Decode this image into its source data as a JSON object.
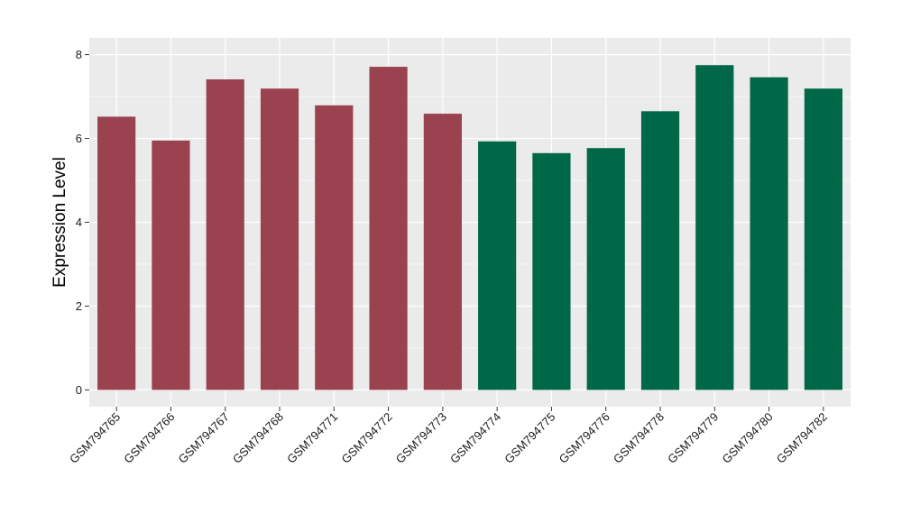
{
  "chart_data": {
    "type": "bar",
    "title": "",
    "xlabel": "",
    "ylabel": "Expression Level",
    "ylim": [
      0,
      8.4
    ],
    "y_ticks": [
      0,
      2,
      4,
      6,
      8
    ],
    "grid": true,
    "legend": "none",
    "background": "#EBEBEB",
    "gridline_color": "#FFFFFF",
    "categories": [
      "GSM794765",
      "GSM794766",
      "GSM794767",
      "GSM794768",
      "GSM794771",
      "GSM794772",
      "GSM794773",
      "GSM794774",
      "GSM794775",
      "GSM794776",
      "GSM794778",
      "GSM794779",
      "GSM794780",
      "GSM794782"
    ],
    "values": [
      6.52,
      5.95,
      7.41,
      7.19,
      6.79,
      7.71,
      6.59,
      5.93,
      5.65,
      5.77,
      6.65,
      7.75,
      7.46,
      7.19
    ],
    "bar_colors": [
      "#9A4250",
      "#9A4250",
      "#9A4250",
      "#9A4250",
      "#9A4250",
      "#9A4250",
      "#9A4250",
      "#006747",
      "#006747",
      "#006747",
      "#006747",
      "#006747",
      "#006747",
      "#006747"
    ]
  }
}
